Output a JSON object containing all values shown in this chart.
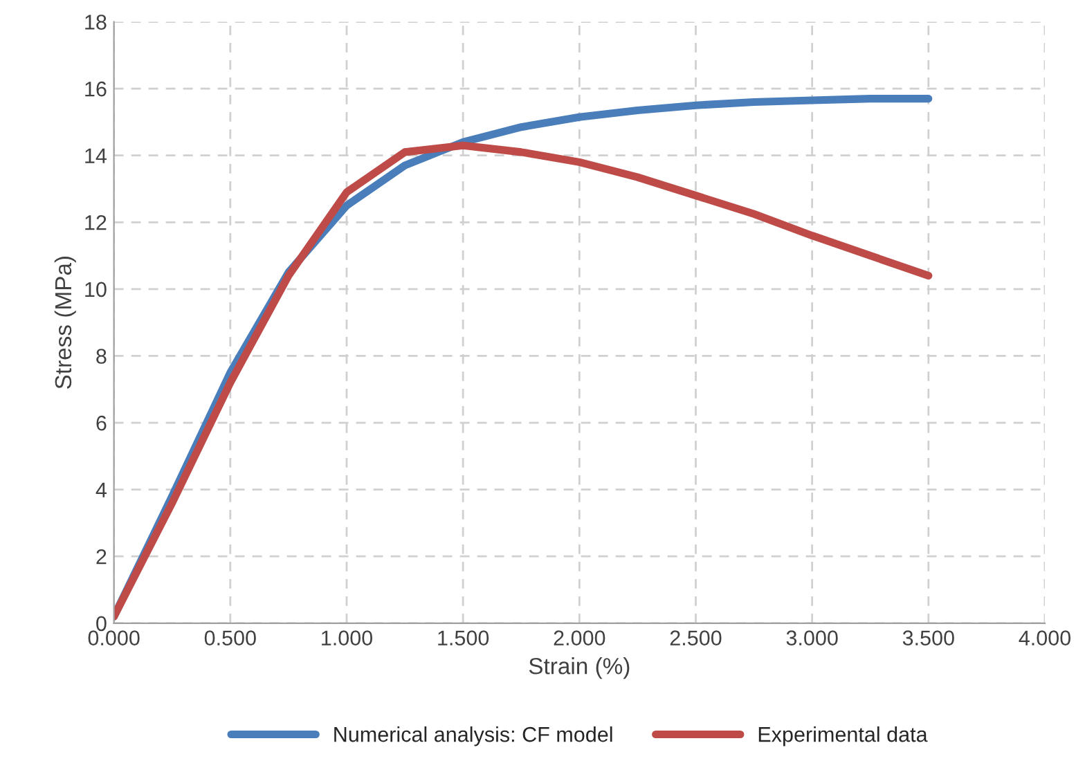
{
  "chart_data": {
    "type": "line",
    "xlabel": "Strain (%)",
    "ylabel": "Stress (MPa)",
    "xlim": [
      0,
      4
    ],
    "ylim": [
      0,
      18
    ],
    "xticks": [
      {
        "value": 0,
        "label": "0.000"
      },
      {
        "value": 0.5,
        "label": "0.500"
      },
      {
        "value": 1,
        "label": "1.000"
      },
      {
        "value": 1.5,
        "label": "1.500"
      },
      {
        "value": 2,
        "label": "2.000"
      },
      {
        "value": 2.5,
        "label": "2.500"
      },
      {
        "value": 3,
        "label": "3.000"
      },
      {
        "value": 3.5,
        "label": "3.500"
      },
      {
        "value": 4,
        "label": "4.000"
      }
    ],
    "yticks": [
      0,
      2,
      4,
      6,
      8,
      10,
      12,
      14,
      16,
      18
    ],
    "grid": true,
    "legend": "bottom",
    "marker": "none",
    "line_style": "solid",
    "x": [
      0,
      0.25,
      0.5,
      0.75,
      1.0,
      1.25,
      1.5,
      1.75,
      2.0,
      2.25,
      2.5,
      2.75,
      3.0,
      3.25,
      3.5
    ],
    "series": [
      {
        "name": "Numerical analysis: CF model",
        "color": "#4a7ebb",
        "values": [
          0.2,
          3.8,
          7.5,
          10.5,
          12.5,
          13.7,
          14.4,
          14.85,
          15.15,
          15.35,
          15.5,
          15.6,
          15.65,
          15.7,
          15.7
        ]
      },
      {
        "name": "Experimental data",
        "color": "#be4b48",
        "values": [
          0.2,
          3.6,
          7.2,
          10.4,
          12.9,
          14.1,
          14.3,
          14.1,
          13.8,
          13.35,
          12.8,
          12.25,
          11.6,
          11.0,
          10.4
        ]
      }
    ]
  }
}
